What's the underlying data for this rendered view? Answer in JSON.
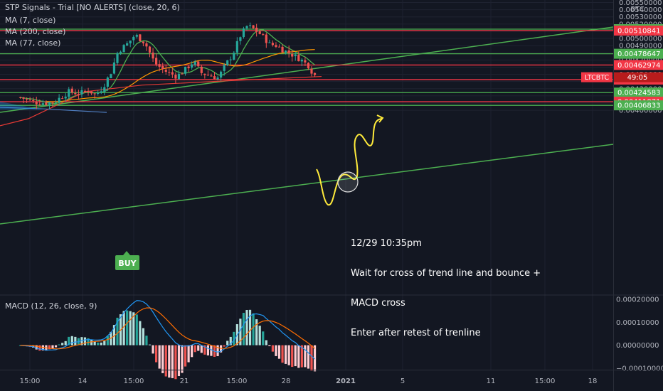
{
  "indicators": {
    "stp": "STP Signals - Trial [NO ALERTS] (close, 20, 6)",
    "ma7": "MA (7, close)",
    "ma200": "MA (200, close)",
    "ma77": "MA (77, close)",
    "macd": "MACD (12, 26, close, 9)"
  },
  "annotation": {
    "line1": "12/29 10:35pm",
    "line2": "Wait for cross of trend line and bounce +",
    "line3": "MACD cross",
    "line4": "Enter after retest of trenline"
  },
  "buy_label": "BUY",
  "colors": {
    "background": "#131722",
    "up": "#26a69a",
    "down": "#ef5350",
    "ma7": "#4caf50",
    "ma200": "#e53935",
    "ma77": "#ff9800",
    "trendline": "#4caf50",
    "macd": "#2196f3",
    "signal": "#ff6d00",
    "drawing": "#ffeb3b"
  },
  "chart_data": {
    "type": "candlestick",
    "symbol": "LTCBTC",
    "currency": "BTC",
    "countdown": "49:05",
    "price_axis": {
      "ticks": [
        "0.00550000",
        "0.00540000",
        "0.00530000",
        "0.00520000",
        "0.00510000",
        "0.00500000",
        "0.00490000",
        "0.00480000",
        "0.00470000",
        "0.00460000",
        "0.00450000",
        "0.00440000",
        "0.00430000",
        "0.00420000",
        "0.00410000",
        "0.00400000"
      ],
      "ylim": [
        0.00398,
        0.00552
      ]
    },
    "x_axis": {
      "ticks": [
        "15:00",
        "14",
        "15:00",
        "21",
        "15:00",
        "28",
        "2021",
        "5",
        "11",
        "15:00",
        "18"
      ]
    },
    "price_lines": [
      {
        "value": "0.00512898",
        "kind": "support"
      },
      {
        "value": "0.00510841",
        "kind": "resistance"
      },
      {
        "value": "0.00478647",
        "kind": "support"
      },
      {
        "value": "0.00462974",
        "kind": "resistance"
      },
      {
        "value": "0.00442692",
        "kind": "resistance"
      },
      {
        "value": "0.00424583",
        "kind": "support"
      },
      {
        "value": "0.00411871",
        "kind": "resistance"
      },
      {
        "value": "0.00406833",
        "kind": "support"
      }
    ],
    "last_price": "0.00446",
    "macd": {
      "ticks": [
        "0.00020000",
        "0.00010000",
        "0.00000000",
        "−0.00010000"
      ],
      "ylim": [
        -0.00011,
        0.00021
      ]
    }
  }
}
